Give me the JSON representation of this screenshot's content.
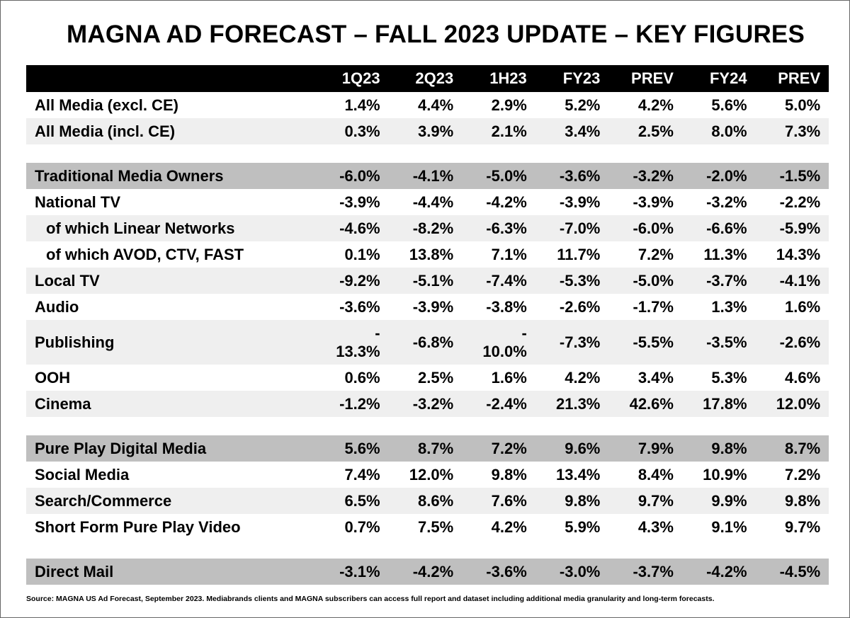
{
  "title": "MAGNA AD FORECAST – FALL 2023 UPDATE – KEY FIGURES",
  "chart_data": {
    "type": "table",
    "columns": [
      "1Q23",
      "2Q23",
      "1H23",
      "FY23",
      "PREV",
      "FY24",
      "PREV"
    ],
    "rows": [
      {
        "label": "All Media (excl. CE)",
        "values": [
          "1.4%",
          "4.4%",
          "2.9%",
          "5.2%",
          "4.2%",
          "5.6%",
          "5.0%"
        ]
      },
      {
        "label": "All Media (incl. CE)",
        "values": [
          "0.3%",
          "3.9%",
          "2.1%",
          "3.4%",
          "2.5%",
          "8.0%",
          "7.3%"
        ]
      },
      {
        "label": "Traditional Media Owners",
        "values": [
          "-6.0%",
          "-4.1%",
          "-5.0%",
          "-3.6%",
          "-3.2%",
          "-2.0%",
          "-1.5%"
        ]
      },
      {
        "label": "National TV",
        "values": [
          "-3.9%",
          "-4.4%",
          "-4.2%",
          "-3.9%",
          "-3.9%",
          "-3.2%",
          "-2.2%"
        ]
      },
      {
        "label": "of which Linear Networks",
        "values": [
          "-4.6%",
          "-8.2%",
          "-6.3%",
          "-7.0%",
          "-6.0%",
          "-6.6%",
          "-5.9%"
        ]
      },
      {
        "label": "of which AVOD, CTV, FAST",
        "values": [
          "0.1%",
          "13.8%",
          "7.1%",
          "11.7%",
          "7.2%",
          "11.3%",
          "14.3%"
        ]
      },
      {
        "label": "Local TV",
        "values": [
          "-9.2%",
          "-5.1%",
          "-7.4%",
          "-5.3%",
          "-5.0%",
          "-3.7%",
          "-4.1%"
        ]
      },
      {
        "label": "Audio",
        "values": [
          "-3.6%",
          "-3.9%",
          "-3.8%",
          "-2.6%",
          "-1.7%",
          "1.3%",
          "1.6%"
        ]
      },
      {
        "label": "Publishing",
        "values": [
          "-13.3%",
          "-6.8%",
          "-10.0%",
          "-7.3%",
          "-5.5%",
          "-3.5%",
          "-2.6%"
        ]
      },
      {
        "label": "OOH",
        "values": [
          "0.6%",
          "2.5%",
          "1.6%",
          "4.2%",
          "3.4%",
          "5.3%",
          "4.6%"
        ]
      },
      {
        "label": "Cinema",
        "values": [
          "-1.2%",
          "-3.2%",
          "-2.4%",
          "21.3%",
          "42.6%",
          "17.8%",
          "12.0%"
        ]
      },
      {
        "label": "Pure Play Digital Media",
        "values": [
          "5.6%",
          "8.7%",
          "7.2%",
          "9.6%",
          "7.9%",
          "9.8%",
          "8.7%"
        ]
      },
      {
        "label": "Social Media",
        "values": [
          "7.4%",
          "12.0%",
          "9.8%",
          "13.4%",
          "8.4%",
          "10.9%",
          "7.2%"
        ]
      },
      {
        "label": "Search/Commerce",
        "values": [
          "6.5%",
          "8.6%",
          "7.6%",
          "9.8%",
          "9.7%",
          "9.9%",
          "9.8%"
        ]
      },
      {
        "label": "Short Form Pure Play Video",
        "values": [
          "0.7%",
          "7.5%",
          "4.2%",
          "5.9%",
          "4.3%",
          "9.1%",
          "9.7%"
        ]
      },
      {
        "label": "Direct Mail",
        "values": [
          "-3.1%",
          "-4.2%",
          "-3.6%",
          "-3.0%",
          "-3.7%",
          "-4.2%",
          "-4.5%"
        ]
      }
    ]
  },
  "footnote": "Source: MAGNA US Ad Forecast, September 2023. Mediabrands clients and MAGNA subscribers can access full report and dataset including additional media granularity and long-term forecasts."
}
